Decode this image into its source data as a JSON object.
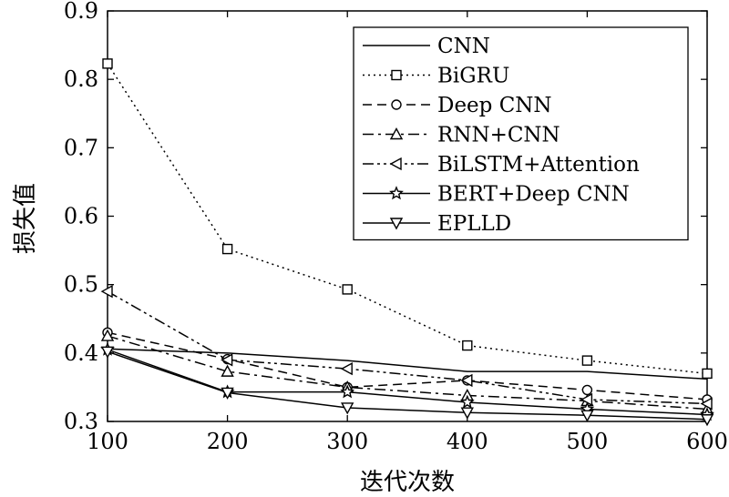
{
  "chart_data": {
    "type": "line",
    "xlabel": "迭代次数",
    "ylabel": "损失值",
    "x": [
      100,
      200,
      300,
      400,
      500,
      600
    ],
    "xlim": [
      100,
      600
    ],
    "ylim": [
      0.3,
      0.9
    ],
    "xticks": [
      "100",
      "200",
      "300",
      "400",
      "500",
      "600"
    ],
    "yticks": [
      "0.3",
      "0.4",
      "0.5",
      "0.6",
      "0.7",
      "0.8",
      "0.9"
    ],
    "grid": false,
    "legend_position": "top-right",
    "series": [
      {
        "name": "CNN",
        "values": [
          0.406,
          0.4,
          0.389,
          0.373,
          0.373,
          0.362
        ],
        "marker": "none",
        "dash": "solid"
      },
      {
        "name": "BiGRU",
        "values": [
          0.823,
          0.552,
          0.493,
          0.411,
          0.389,
          0.37
        ],
        "marker": "square",
        "dash": "dotted"
      },
      {
        "name": "Deep CNN",
        "values": [
          0.43,
          0.391,
          0.35,
          0.36,
          0.346,
          0.332
        ],
        "marker": "circle",
        "dash": "dashed"
      },
      {
        "name": "RNN+CNN",
        "values": [
          0.425,
          0.373,
          0.35,
          0.338,
          0.33,
          0.318
        ],
        "marker": "triangle-up",
        "dash": "dashdot"
      },
      {
        "name": "BiLSTM+Attention",
        "values": [
          0.49,
          0.39,
          0.377,
          0.36,
          0.332,
          0.326
        ],
        "marker": "triangle-left",
        "dash": "dashdotdot"
      },
      {
        "name": "BERT+Deep CNN",
        "values": [
          0.405,
          0.343,
          0.343,
          0.328,
          0.318,
          0.31
        ],
        "marker": "star",
        "dash": "solid"
      },
      {
        "name": "EPLLD",
        "values": [
          0.402,
          0.342,
          0.32,
          0.313,
          0.309,
          0.303
        ],
        "marker": "triangle-down",
        "dash": "solid"
      }
    ]
  }
}
